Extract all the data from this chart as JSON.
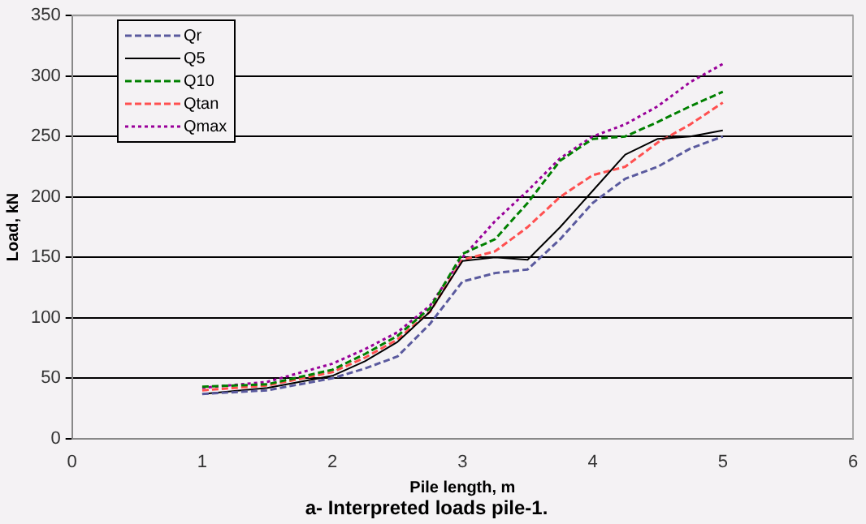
{
  "chart_data": {
    "type": "line",
    "title": "a- Interpreted loads pile-1.",
    "xlabel": "Pile length, m",
    "ylabel": "Load, kN",
    "x": [
      1,
      1.5,
      2,
      2.25,
      2.5,
      2.75,
      3,
      3.25,
      3.5,
      3.75,
      4,
      4.25,
      4.5,
      4.75,
      5
    ],
    "series": [
      {
        "name": "Qr",
        "color": "#5a5a9e",
        "line_style": "dashed",
        "values": [
          37,
          40,
          50,
          58,
          68,
          95,
          130,
          137,
          140,
          165,
          195,
          215,
          225,
          240,
          250
        ]
      },
      {
        "name": "Q5",
        "color": "#000000",
        "line_style": "solid",
        "values": [
          37,
          42,
          52,
          64,
          80,
          105,
          147,
          150,
          148,
          175,
          205,
          235,
          248,
          250,
          255
        ]
      },
      {
        "name": "Q10",
        "color": "#008000",
        "line_style": "dashed",
        "values": [
          43,
          45,
          57,
          70,
          85,
          108,
          153,
          165,
          195,
          230,
          248,
          250,
          262,
          275,
          287
        ]
      },
      {
        "name": "Qtan",
        "color": "#ff5050",
        "line_style": "dashed",
        "values": [
          40,
          44,
          55,
          67,
          82,
          105,
          148,
          155,
          175,
          200,
          218,
          225,
          245,
          260,
          278
        ]
      },
      {
        "name": "Qmax",
        "color": "#990099",
        "line_style": "dotted",
        "values": [
          42,
          47,
          62,
          74,
          88,
          110,
          150,
          180,
          205,
          232,
          250,
          260,
          275,
          295,
          310
        ]
      }
    ],
    "xlim": [
      0,
      6
    ],
    "xticks": [
      0,
      1,
      2,
      3,
      4,
      5,
      6
    ],
    "ylim": [
      0,
      350
    ],
    "yticks": [
      0,
      50,
      100,
      150,
      200,
      250,
      300,
      350
    ],
    "grid": "y",
    "legend": "top left",
    "marker": "none"
  }
}
